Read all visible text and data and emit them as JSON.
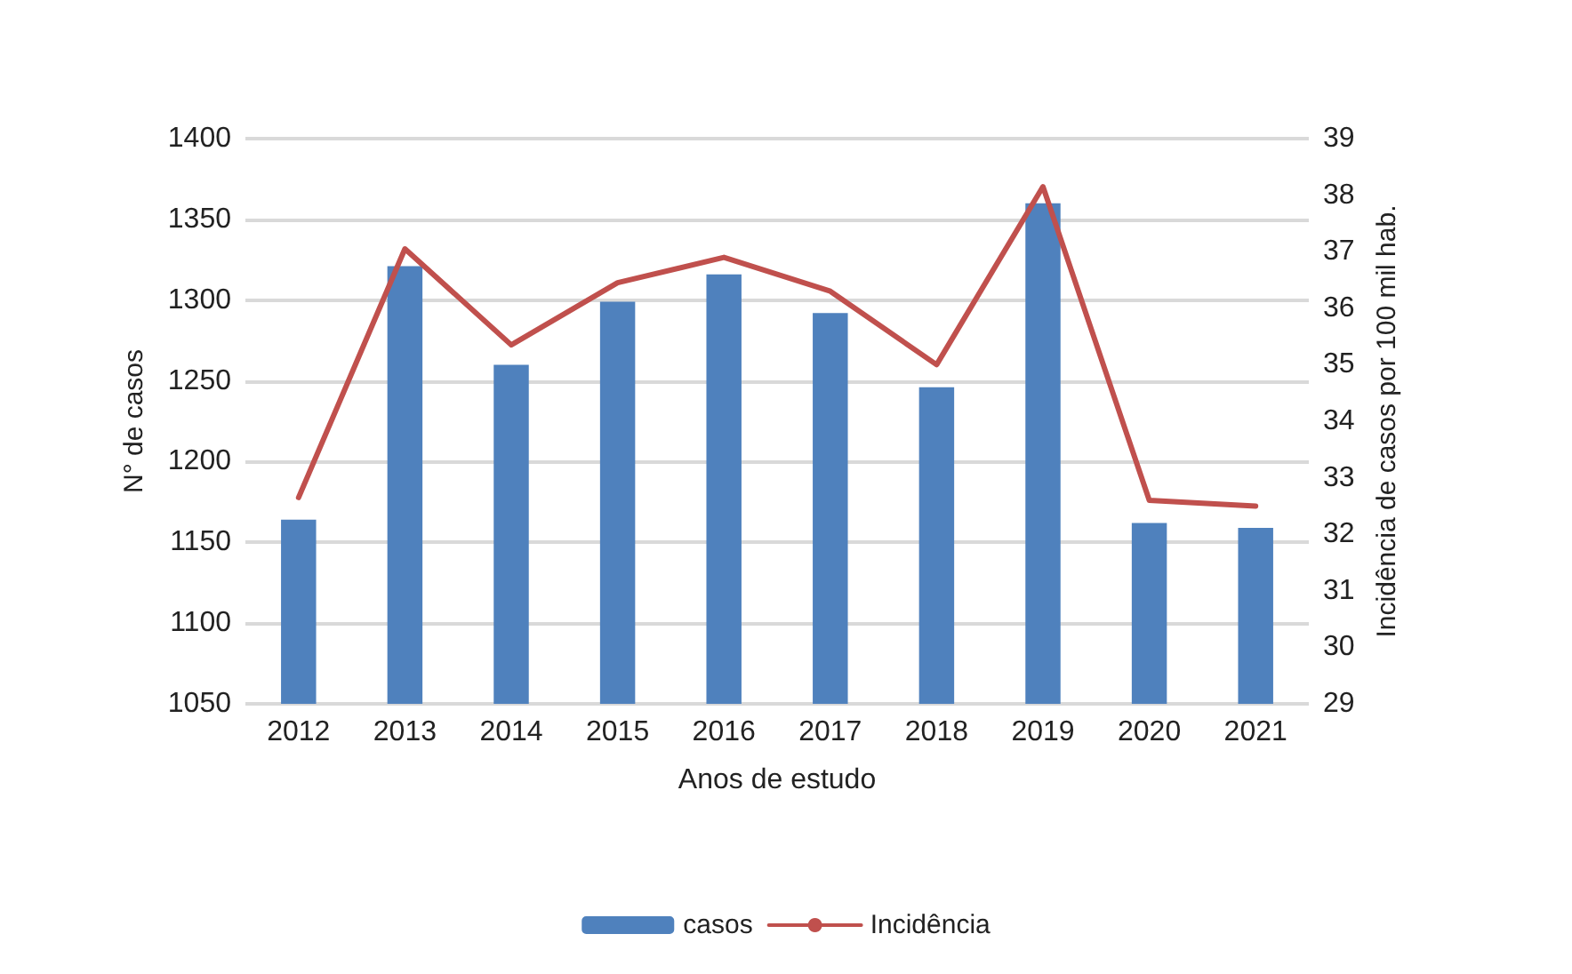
{
  "chart_data": {
    "type": "bar",
    "xlabel": "Anos de estudo",
    "ylabel": "N° de casos",
    "y2label": "Incidência de casos por 100 mil hab.",
    "categories": [
      "2012",
      "2013",
      "2014",
      "2015",
      "2016",
      "2017",
      "2018",
      "2019",
      "2020",
      "2021"
    ],
    "series": [
      {
        "name": "casos",
        "color": "#4f81bd",
        "values": [
          1164,
          1321,
          1260,
          1299,
          1316,
          1292,
          1246,
          1360,
          1162,
          1159
        ]
      },
      {
        "name": "Incidência",
        "type": "line",
        "axis": "y2",
        "color": "#c0504d",
        "values": [
          32.65,
          37.05,
          35.35,
          36.45,
          36.9,
          36.3,
          35.0,
          38.15,
          32.6,
          32.5
        ]
      }
    ],
    "ylim": [
      1050,
      1400
    ],
    "yticks": [
      1050,
      1100,
      1150,
      1200,
      1250,
      1300,
      1350,
      1400
    ],
    "y2lim": [
      29,
      39
    ],
    "y2ticks": [
      29,
      30,
      31,
      32,
      33,
      34,
      35,
      36,
      37,
      38,
      39
    ],
    "grid": "y",
    "legend": "bottom",
    "marker": "none",
    "line_style": "solid"
  }
}
